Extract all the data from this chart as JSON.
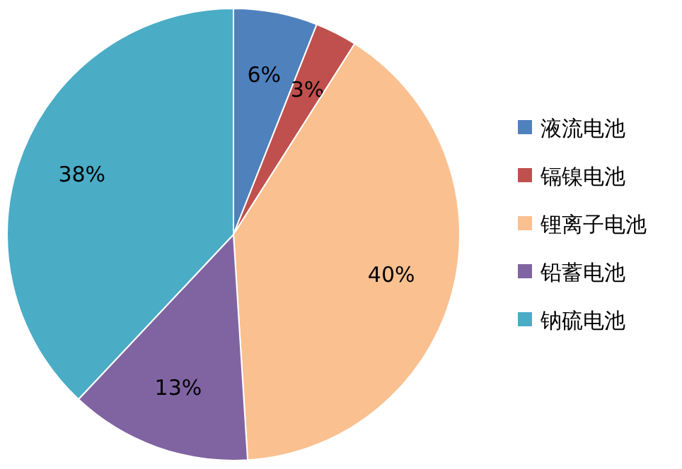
{
  "chart_data": {
    "type": "pie",
    "categories": [
      "液流电池",
      "镉镍电池",
      "锂离子电池",
      "铅蓄电池",
      "钠硫电池"
    ],
    "values": [
      6,
      3,
      40,
      13,
      38
    ],
    "colors": [
      "#4f81bd",
      "#c0504d",
      "#fac090",
      "#8064a2",
      "#4bacc6"
    ],
    "value_labels": [
      "6%",
      "3%",
      "40%",
      "13%",
      "38%"
    ],
    "legend": "right"
  }
}
